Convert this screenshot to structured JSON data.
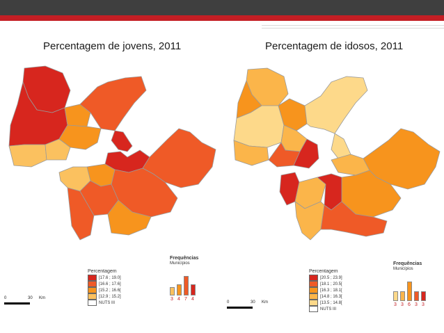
{
  "header": {
    "dark_color": "#3f3f3f",
    "accent_color": "#c41e24"
  },
  "left_map": {
    "title": "Percentagem de jovens, 2011",
    "legend": {
      "title": "Percentagem",
      "items": [
        {
          "label": "[17.6 ; 19.0]",
          "color": "#d7261e"
        },
        {
          "label": "[16.6 ; 17.6]",
          "color": "#ef5a27"
        },
        {
          "label": "[15.2 ; 16.6[",
          "color": "#f7941d"
        },
        {
          "label": "[12.9 ; 15.2]",
          "color": "#fbc15f"
        },
        {
          "label": "NUTS III",
          "color": "#ffffff"
        }
      ]
    },
    "frequencies": {
      "title": "Frequências",
      "subtitle": "Municípios",
      "values": [
        3,
        4,
        7,
        4
      ]
    },
    "scale": {
      "zero": "0",
      "distance": "30",
      "unit": "Km"
    }
  },
  "right_map": {
    "title": "Percentagem de idosos, 2011",
    "legend": {
      "title": "Percentagem",
      "items": [
        {
          "label": "[20.5 ; 23.9]",
          "color": "#d7261e"
        },
        {
          "label": "[18.1 ; 20.5[",
          "color": "#ef5a27"
        },
        {
          "label": "[16.3 ; 18.1[",
          "color": "#f7941d"
        },
        {
          "label": "[14.8 ; 16.3[",
          "color": "#fbb54a"
        },
        {
          "label": "[13.5 ; 14.8[",
          "color": "#fdd98a"
        },
        {
          "label": "NUTS III",
          "color": "#ffffff"
        }
      ]
    },
    "frequencies": {
      "title": "Frequências",
      "subtitle": "Municípios",
      "values": [
        3,
        3,
        6,
        3,
        3
      ]
    },
    "scale": {
      "zero": "0",
      "distance": "30",
      "unit": "Km"
    }
  }
}
